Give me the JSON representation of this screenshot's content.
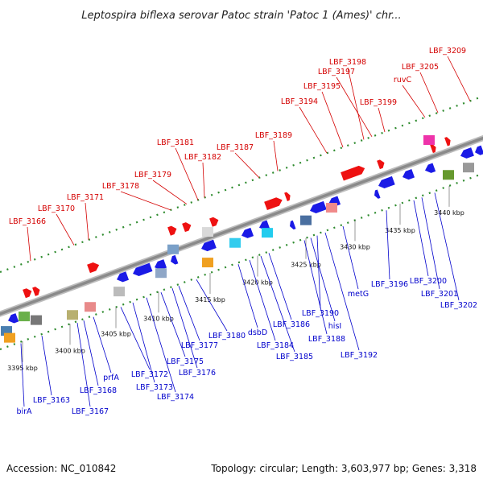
{
  "title": "Leptospira biflexa serovar Patoc strain 'Patoc 1 (Ames)' chr...",
  "footer": {
    "accession": "Accession: NC_010842",
    "summary": "Topology: circular; Length: 3,603,977 bp; Genes: 3,318"
  },
  "colors": {
    "upper_label": "#d40000",
    "lower_label": "#0000cc",
    "forward_gene": "#ee1111",
    "reverse_gene": "#1a1ae6",
    "backbone": "#8a8a8a",
    "dotted_track": "#2e8b2e"
  },
  "ticks": [
    {
      "label": "3395 kbp"
    },
    {
      "label": "3400 kbp"
    },
    {
      "label": "3405 kbp"
    },
    {
      "label": "3410 kbp"
    },
    {
      "label": "3415 kbp"
    },
    {
      "label": "3420 kbp"
    },
    {
      "label": "3425 kbp"
    },
    {
      "label": "3430 kbp"
    },
    {
      "label": "3435 kbp"
    },
    {
      "label": "3440 kbp"
    }
  ],
  "upper_labels": [
    {
      "text": "LBF_3166"
    },
    {
      "text": "LBF_3170"
    },
    {
      "text": "LBF_3171"
    },
    {
      "text": "LBF_3178"
    },
    {
      "text": "LBF_3179"
    },
    {
      "text": "LBF_3181"
    },
    {
      "text": "LBF_3182"
    },
    {
      "text": "LBF_3187"
    },
    {
      "text": "LBF_3189"
    },
    {
      "text": "LBF_3194"
    },
    {
      "text": "LBF_3195"
    },
    {
      "text": "LBF_3198"
    },
    {
      "text": "LBF_3197"
    },
    {
      "text": "LBF_3199"
    },
    {
      "text": "ruvC"
    },
    {
      "text": "LBF_3205"
    },
    {
      "text": "LBF_3209"
    }
  ],
  "lower_labels": [
    {
      "text": "birA"
    },
    {
      "text": "LBF_3163"
    },
    {
      "text": "LBF_3167"
    },
    {
      "text": "LBF_3168"
    },
    {
      "text": "prfA"
    },
    {
      "text": "LBF_3172"
    },
    {
      "text": "LBF_3173"
    },
    {
      "text": "LBF_3174"
    },
    {
      "text": "LBF_3175"
    },
    {
      "text": "LBF_3176"
    },
    {
      "text": "LBF_3177"
    },
    {
      "text": "LBF_3180"
    },
    {
      "text": "dsbD"
    },
    {
      "text": "LBF_3184"
    },
    {
      "text": "LBF_3185"
    },
    {
      "text": "LBF_3186"
    },
    {
      "text": "LBF_3188"
    },
    {
      "text": "hisI"
    },
    {
      "text": "LBF_3190"
    },
    {
      "text": "LBF_3192"
    },
    {
      "text": "metG"
    },
    {
      "text": "LBF_3196"
    },
    {
      "text": "LBF_3200"
    },
    {
      "text": "LBF_3201"
    },
    {
      "text": "LBF_3202"
    }
  ]
}
